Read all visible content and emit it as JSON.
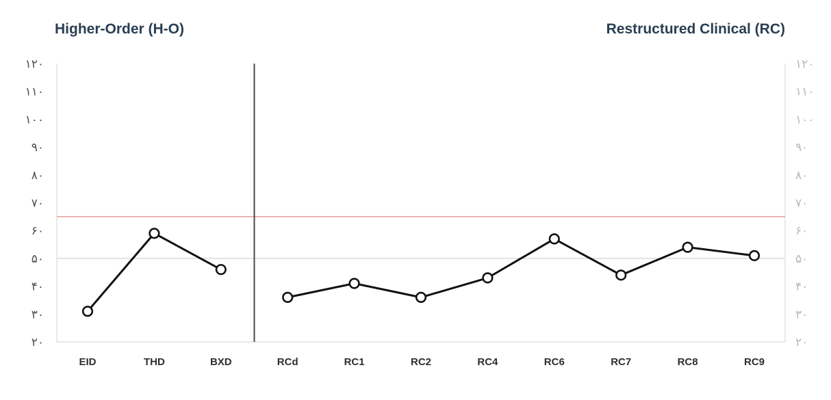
{
  "header": {
    "left_title": "Higher-Order (H-O)",
    "right_title": "Restructured Clinical (RC)",
    "title_color": "#2a3e52"
  },
  "chart_data": {
    "type": "line",
    "title": "",
    "xlabel": "",
    "ylabel": "",
    "ylim": [
      20,
      120
    ],
    "ytick_step": 10,
    "yticks": [
      20,
      30,
      40,
      50,
      60,
      70,
      80,
      90,
      100,
      110,
      120
    ],
    "ytick_labels_persian": [
      "۲۰",
      "۳۰",
      "۴۰",
      "۵۰",
      "۶۰",
      "۷۰",
      "۸۰",
      "۹۰",
      "۱۰۰",
      "۱۱۰",
      "۱۲۰"
    ],
    "y_axis_sides": [
      "left",
      "right"
    ],
    "legend": "none",
    "grid": "mean-line-only",
    "groups": [
      {
        "name": "Higher-Order (H-O)",
        "categories": [
          "EID",
          "THD",
          "BXD"
        ],
        "values": [
          31,
          59,
          46
        ]
      },
      {
        "name": "Restructured Clinical (RC)",
        "categories": [
          "RCd",
          "RC1",
          "RC2",
          "RC4",
          "RC6",
          "RC7",
          "RC8",
          "RC9"
        ],
        "values": [
          36,
          41,
          36,
          43,
          57,
          44,
          54,
          51
        ]
      }
    ],
    "reference_lines": [
      {
        "name": "clinical-cutoff",
        "value": 65,
        "color": "#e0948d",
        "width": 1.4
      },
      {
        "name": "mean",
        "value": 50,
        "color": "#e2e2e2",
        "width": 2
      }
    ],
    "colors": {
      "series_line": "#111111",
      "marker_fill": "#ffffff",
      "marker_stroke": "#111111",
      "axis_line": "#dcdcdc",
      "group_divider": "#4a4a4a",
      "ytick_label_left": "#4f4f4f",
      "ytick_label_right": "#b5b8ba",
      "xtick_label": "#2e2e2e"
    }
  }
}
